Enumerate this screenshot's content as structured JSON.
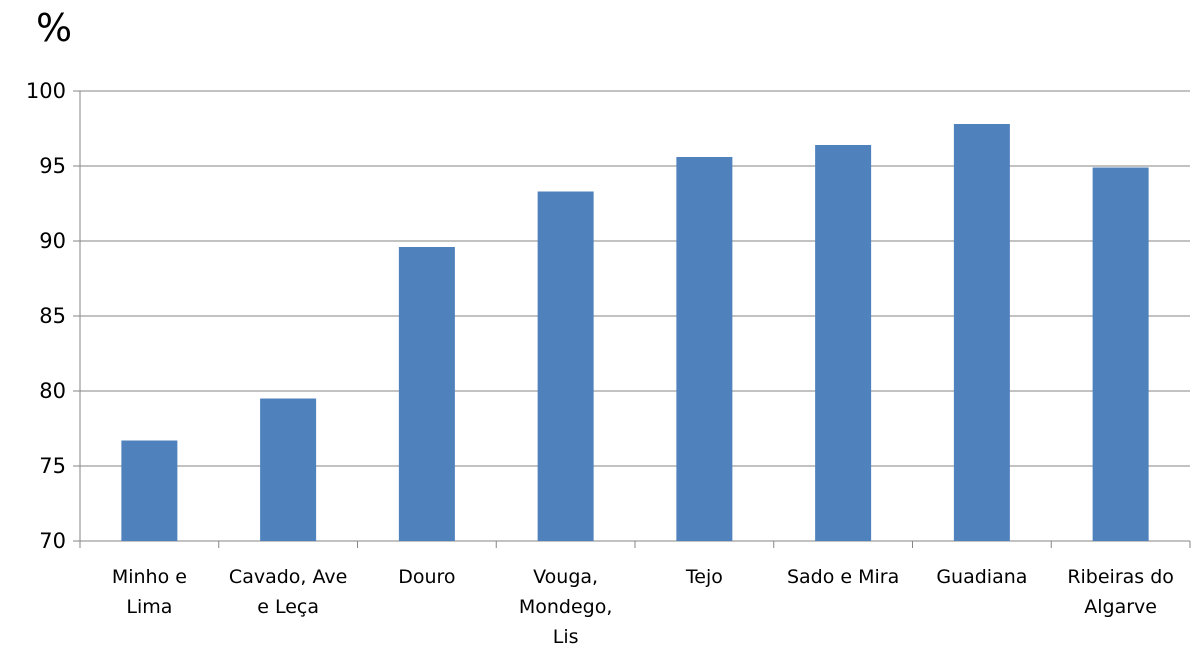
{
  "chart_data": {
    "type": "bar",
    "unit_label": "%",
    "categories": [
      [
        "Minho e",
        "Lima"
      ],
      [
        "Cavado, Ave",
        "e Leça"
      ],
      [
        "Douro"
      ],
      [
        "Vouga,",
        "Mondego,",
        "Lis"
      ],
      [
        "Tejo"
      ],
      [
        "Sado e Mira"
      ],
      [
        "Guadiana"
      ],
      [
        "Ribeiras do",
        "Algarve"
      ]
    ],
    "values": [
      76.7,
      79.5,
      89.6,
      93.3,
      95.6,
      96.4,
      97.8,
      94.9
    ],
    "ylim": [
      70,
      100
    ],
    "yticks": [
      70,
      75,
      80,
      85,
      90,
      95,
      100
    ],
    "grid": true,
    "bar_color": "#4F81BD",
    "grid_color": "#868686",
    "xlabel": "",
    "ylabel": ""
  }
}
